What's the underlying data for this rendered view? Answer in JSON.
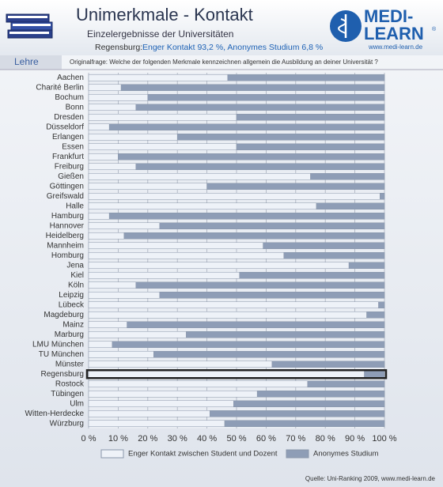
{
  "header": {
    "title": "Unimerkmale - Kontakt",
    "subtitle": "Einzelergebnisse der Universitäten",
    "note_label": "Regensburg:",
    "note_text": "Enger Kontakt 93,2 %, Anonymes Studium 6,8 %",
    "section": "Lehre",
    "question": "Originalfrage: Welche der folgenden Merkmale kennzeichnen allgemein die Ausbildung an deiner Universität ?"
  },
  "logo": {
    "line1": "MEDI-",
    "line2": "LEARN",
    "mark": "®",
    "url": "www.medi-learn.de"
  },
  "footer": {
    "source": "Quelle: Uni-Ranking 2009, www.medi-learn.de"
  },
  "chart_data": {
    "type": "stacked-hbar",
    "highlight": "Regensburg",
    "categories": [
      "Aachen",
      "Charité Berlin",
      "Bochum",
      "Bonn",
      "Dresden",
      "Düsseldorf",
      "Erlangen",
      "Essen",
      "Frankfurt",
      "Freiburg",
      "Gießen",
      "Göttingen",
      "Greifswald",
      "Halle",
      "Hamburg",
      "Hannover",
      "Heidelberg",
      "Mannheim",
      "Homburg",
      "Jena",
      "Kiel",
      "Köln",
      "Leipzig",
      "Lübeck",
      "Magdeburg",
      "Mainz",
      "Marburg",
      "LMU München",
      "TU München",
      "Münster",
      "Regensburg",
      "Rostock",
      "Tübingen",
      "Ulm",
      "Witten-Herdecke",
      "Würzburg"
    ],
    "series": [
      {
        "name": "Enger Kontakt zwischen Student und Dozent",
        "color": "#eef2f8",
        "values": [
          47,
          11,
          20,
          16,
          50,
          7,
          30,
          50,
          10,
          16,
          75,
          40,
          98.5,
          77,
          7,
          24,
          12,
          59,
          66,
          88,
          51,
          16,
          24,
          98,
          94,
          13,
          33,
          8,
          22,
          62,
          93.2,
          74,
          57,
          49,
          41,
          46
        ]
      },
      {
        "name": "Anonymes Studium",
        "color": "#8e9db6",
        "values": [
          53,
          89,
          80,
          84,
          50,
          93,
          70,
          50,
          90,
          84,
          25,
          60,
          1.5,
          23,
          93,
          76,
          88,
          41,
          34,
          12,
          49,
          84,
          76,
          2,
          6,
          87,
          67,
          92,
          78,
          38,
          6.8,
          26,
          43,
          51,
          59,
          54
        ]
      }
    ],
    "xlim": [
      0,
      100
    ],
    "xticks": [
      {
        "value": 0,
        "label": "0 %"
      },
      {
        "value": 10,
        "label": "10 %"
      },
      {
        "value": 20,
        "label": "20 %"
      },
      {
        "value": 30,
        "label": "30 %"
      },
      {
        "value": 40,
        "label": "40 %"
      },
      {
        "value": 50,
        "label": "50 %"
      },
      {
        "value": 60,
        "label": "60 %"
      },
      {
        "value": 70,
        "label": "70 %"
      },
      {
        "value": 80,
        "label": "80 %"
      },
      {
        "value": 90,
        "label": "90 %"
      },
      {
        "value": 100,
        "label": "100 %"
      }
    ],
    "grid": true
  }
}
